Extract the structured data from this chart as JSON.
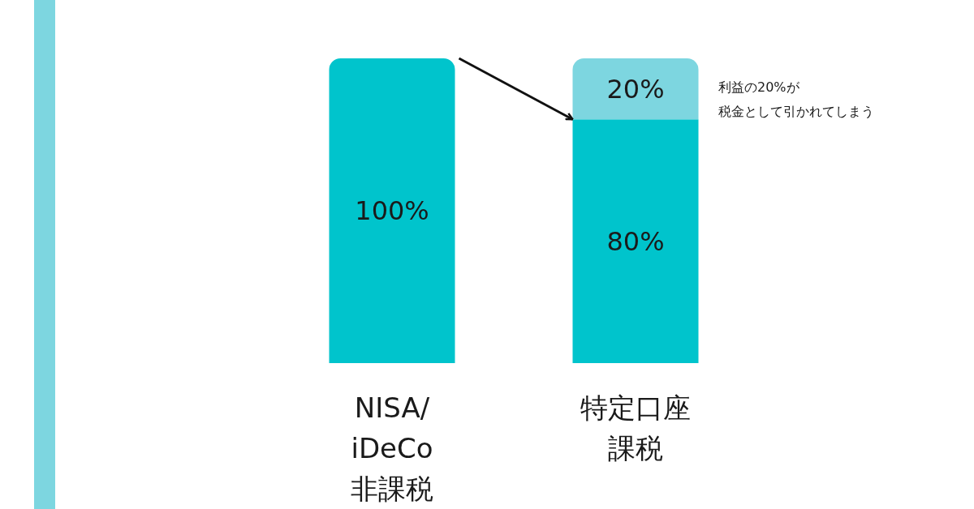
{
  "chart_data": {
    "type": "bar",
    "stacked": true,
    "categories": [
      "NISA/iDeCo\n非課税",
      "特定口座課税"
    ],
    "series": [
      {
        "color": "#00c4cc",
        "values": [
          100,
          80
        ],
        "value_labels": [
          "100%",
          "80%"
        ]
      },
      {
        "color": "#7dd6e0",
        "values": [
          null,
          20
        ],
        "value_labels": [
          null,
          "20%"
        ]
      }
    ],
    "annotations": [
      "利益の20%が",
      "税金として引かれてしまう"
    ]
  }
}
